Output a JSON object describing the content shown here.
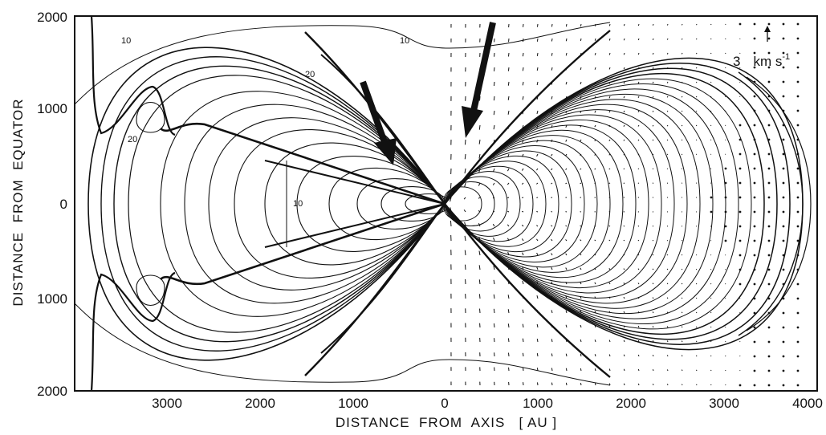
{
  "figure": {
    "x_axis_title": "DISTANCE  FROM  AXIS   [ AU ]",
    "y_axis_title": "DISTANCE  FROM  EQUATOR",
    "x_tick_labels": [
      "3000",
      "2000",
      "1000",
      "0",
      "1000",
      "2000",
      "3000",
      "4000"
    ],
    "y_tick_labels": [
      "2000",
      "1000",
      "0",
      "1000",
      "2000"
    ],
    "contour_labels": [
      "10",
      "10",
      "20",
      "20",
      "10"
    ],
    "scale_arrow": {
      "value": "3",
      "unit": "km s",
      "exponent": "-1"
    },
    "line_color": "#111111",
    "background": "#ffffff"
  }
}
